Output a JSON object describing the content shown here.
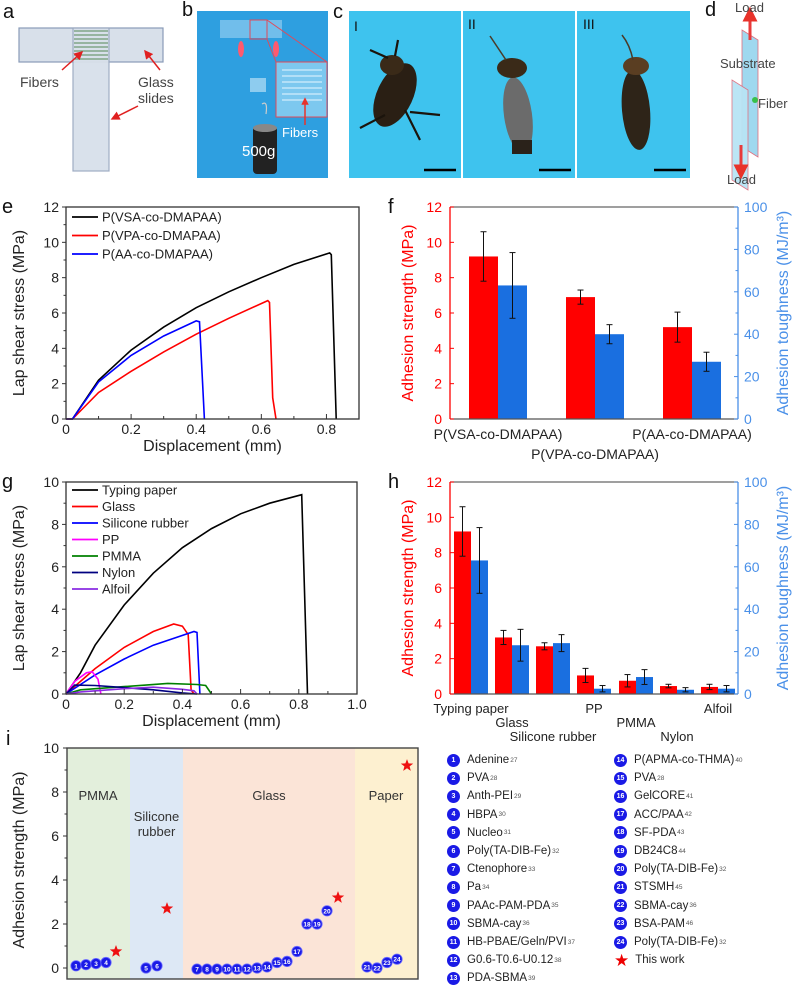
{
  "panel_letters": {
    "a": "a",
    "b": "b",
    "c": "c",
    "d": "d",
    "e": "e",
    "f": "f",
    "g": "g",
    "h": "h",
    "i": "i"
  },
  "panel_a": {
    "fibers": "Fibers",
    "glass_slides": "Glass slides"
  },
  "panel_b": {
    "weight": "500g",
    "fibers": "Fibers"
  },
  "panel_c": {
    "labels": [
      "I",
      "II",
      "III"
    ]
  },
  "panel_d": {
    "load_top": "Load",
    "substrate": "Substrate",
    "fiber": "Fiber",
    "load_bottom": "Load"
  },
  "colors": {
    "strength": "#ff0000",
    "toughness": "#1a6fe0",
    "toughness_axis": "#4a90e8",
    "photo_bg": "#2e9fe0",
    "insect_bg": "#3ec3ee",
    "marker": "#1a1ae6",
    "star": "#ee1111"
  },
  "chart_data": [
    {
      "type": "line",
      "xlabel": "Displacement (mm)",
      "ylabel": "Lap shear stress (MPa)",
      "xlim": [
        0,
        0.9
      ],
      "ylim": [
        0,
        12
      ],
      "xticks": [
        "0",
        "0.2",
        "0.4",
        "0.6",
        "0.8"
      ],
      "yticks": [
        "0",
        "2",
        "4",
        "6",
        "8",
        "10",
        "12"
      ],
      "legend": "top-left",
      "grid": false,
      "series": [
        {
          "name": "P(VSA-co-DMAPAA)",
          "color": "#000000",
          "points": [
            [
              0,
              0
            ],
            [
              0.02,
              0
            ],
            [
              0.1,
              2.2
            ],
            [
              0.2,
              3.9
            ],
            [
              0.3,
              5.2
            ],
            [
              0.4,
              6.3
            ],
            [
              0.5,
              7.2
            ],
            [
              0.6,
              8.0
            ],
            [
              0.7,
              8.75
            ],
            [
              0.81,
              9.4
            ],
            [
              0.815,
              9.3
            ],
            [
              0.83,
              0
            ]
          ]
        },
        {
          "name": "P(VPA-co-DMAPAA)",
          "color": "#ff0000",
          "points": [
            [
              0,
              0
            ],
            [
              0.02,
              0
            ],
            [
              0.1,
              1.5
            ],
            [
              0.2,
              2.7
            ],
            [
              0.3,
              3.8
            ],
            [
              0.4,
              4.8
            ],
            [
              0.5,
              5.7
            ],
            [
              0.62,
              6.7
            ],
            [
              0.625,
              6.6
            ],
            [
              0.635,
              1.2
            ],
            [
              0.645,
              0
            ]
          ]
        },
        {
          "name": "P(AA-co-DMAPAA)",
          "color": "#0000ff",
          "points": [
            [
              0,
              0
            ],
            [
              0.02,
              0
            ],
            [
              0.1,
              2.1
            ],
            [
              0.2,
              3.6
            ],
            [
              0.3,
              4.7
            ],
            [
              0.4,
              5.55
            ],
            [
              0.41,
              5.5
            ],
            [
              0.425,
              0
            ]
          ]
        }
      ]
    },
    {
      "type": "bar",
      "categories": [
        "P(VSA-co-DMAPAA)",
        "P(VPA-co-DMAPAA)",
        "P(AA-co-DMAPAA)"
      ],
      "ylabel": "Adhesion strength (MPa)",
      "y2label": "Adhesion toughness (MJ/m³)",
      "ylim": [
        0,
        12
      ],
      "y2lim": [
        0,
        100
      ],
      "yticks": [
        "0",
        "2",
        "4",
        "6",
        "8",
        "10",
        "12"
      ],
      "y2ticks": [
        "0",
        "20",
        "40",
        "60",
        "80",
        "100"
      ],
      "series": [
        {
          "axis": "left",
          "color": "#ff0000",
          "values": [
            9.2,
            6.9,
            5.2
          ],
          "errors": [
            1.4,
            0.4,
            0.85
          ]
        },
        {
          "axis": "right",
          "color": "#1a6fe0",
          "values": [
            63,
            40,
            27
          ],
          "errors": [
            15.5,
            4.5,
            4.5
          ]
        }
      ]
    },
    {
      "type": "line",
      "xlabel": "Displacement (mm)",
      "ylabel": "Lap shear stress (MPa)",
      "xlim": [
        0,
        1.0
      ],
      "ylim": [
        0,
        10
      ],
      "xticks": [
        "0",
        "0.2",
        "0.4",
        "0.6",
        "0.8",
        "1.0"
      ],
      "yticks": [
        "0",
        "2",
        "4",
        "6",
        "8",
        "10"
      ],
      "legend": "top-left",
      "grid": false,
      "series": [
        {
          "name": "Typing paper",
          "color": "#000000",
          "points": [
            [
              0,
              0
            ],
            [
              0.05,
              1
            ],
            [
              0.1,
              2.3
            ],
            [
              0.2,
              4.2
            ],
            [
              0.3,
              5.7
            ],
            [
              0.4,
              6.9
            ],
            [
              0.5,
              7.8
            ],
            [
              0.6,
              8.5
            ],
            [
              0.7,
              9.0
            ],
            [
              0.81,
              9.4
            ],
            [
              0.83,
              0
            ]
          ]
        },
        {
          "name": "Glass",
          "color": "#ff0000",
          "points": [
            [
              0,
              0
            ],
            [
              0.1,
              1.2
            ],
            [
              0.2,
              2.2
            ],
            [
              0.3,
              2.95
            ],
            [
              0.37,
              3.3
            ],
            [
              0.4,
              3.2
            ],
            [
              0.42,
              2.8
            ],
            [
              0.43,
              0.2
            ],
            [
              0.44,
              0
            ]
          ]
        },
        {
          "name": "Silicone rubber",
          "color": "#0000ff",
          "points": [
            [
              0,
              0
            ],
            [
              0.1,
              0.9
            ],
            [
              0.2,
              1.65
            ],
            [
              0.3,
              2.3
            ],
            [
              0.44,
              2.95
            ],
            [
              0.45,
              2.9
            ],
            [
              0.46,
              0
            ]
          ]
        },
        {
          "name": "PP",
          "color": "#ff00ff",
          "points": [
            [
              0,
              0
            ],
            [
              0.03,
              0.6
            ],
            [
              0.07,
              1.0
            ],
            [
              0.09,
              1.05
            ],
            [
              0.11,
              0.7
            ],
            [
              0.12,
              0
            ]
          ]
        },
        {
          "name": "PMMA",
          "color": "#008000",
          "points": [
            [
              0,
              0
            ],
            [
              0.05,
              0.2
            ],
            [
              0.2,
              0.35
            ],
            [
              0.35,
              0.5
            ],
            [
              0.45,
              0.45
            ],
            [
              0.48,
              0.4
            ],
            [
              0.5,
              0
            ]
          ]
        },
        {
          "name": "Nylon",
          "color": "#000080",
          "points": [
            [
              0,
              0
            ],
            [
              0.03,
              0.42
            ],
            [
              0.1,
              0.4
            ],
            [
              0.2,
              0.3
            ],
            [
              0.3,
              0.2
            ],
            [
              0.4,
              0.05
            ],
            [
              0.45,
              0
            ]
          ]
        },
        {
          "name": "Alfoil",
          "color": "#8a2be2",
          "points": [
            [
              0,
              0
            ],
            [
              0.05,
              0.1
            ],
            [
              0.2,
              0.25
            ],
            [
              0.3,
              0.32
            ],
            [
              0.4,
              0.22
            ],
            [
              0.44,
              0.15
            ],
            [
              0.45,
              0
            ]
          ]
        }
      ]
    },
    {
      "type": "bar",
      "categories": [
        "Typing paper",
        "Glass",
        "Silicone rubber",
        "PP",
        "PMMA",
        "Nylon",
        "Alfoil"
      ],
      "ylabel": "Adhesion strength (MPa)",
      "y2label": "Adhesion toughness (MJ/m³)",
      "ylim": [
        0,
        12
      ],
      "y2lim": [
        0,
        100
      ],
      "yticks": [
        "0",
        "2",
        "4",
        "6",
        "8",
        "10",
        "12"
      ],
      "y2ticks": [
        "0",
        "20",
        "40",
        "60",
        "80",
        "100"
      ],
      "series": [
        {
          "axis": "left",
          "color": "#ff0000",
          "values": [
            9.2,
            3.2,
            2.7,
            1.05,
            0.75,
            0.45,
            0.4
          ],
          "errors": [
            1.4,
            0.4,
            0.2,
            0.4,
            0.35,
            0.1,
            0.15
          ]
        },
        {
          "axis": "right",
          "color": "#1a6fe0",
          "values": [
            63,
            23,
            24,
            2.5,
            8,
            2,
            2.5
          ],
          "errors": [
            15.5,
            7.5,
            4,
            1.5,
            3.5,
            1,
            1.5
          ]
        }
      ]
    },
    {
      "type": "scatter",
      "ylabel": "Adhesion strength (MPa)",
      "ylim": [
        -0.5,
        10
      ],
      "yticks": [
        "0",
        "2",
        "4",
        "6",
        "8",
        "10"
      ],
      "regions": [
        {
          "label": "PMMA",
          "color": "#e3efdc"
        },
        {
          "label": "Silicone rubber",
          "color": "#dde8f5"
        },
        {
          "label": "Glass",
          "color": "#fbe4d7"
        },
        {
          "label": "Paper",
          "color": "#fdf0d0"
        }
      ],
      "points": [
        {
          "n": 1,
          "region": 0,
          "value": 0.1
        },
        {
          "n": 2,
          "region": 0,
          "value": 0.15
        },
        {
          "n": 3,
          "region": 0,
          "value": 0.2
        },
        {
          "n": 4,
          "region": 0,
          "value": 0.25
        },
        {
          "n": 5,
          "region": 1,
          "value": 0.0
        },
        {
          "n": 6,
          "region": 1,
          "value": 0.1
        },
        {
          "n": 7,
          "region": 2,
          "value": -0.05
        },
        {
          "n": 8,
          "region": 2,
          "value": -0.05
        },
        {
          "n": 9,
          "region": 2,
          "value": -0.05
        },
        {
          "n": 10,
          "region": 2,
          "value": -0.05
        },
        {
          "n": 11,
          "region": 2,
          "value": -0.05
        },
        {
          "n": 12,
          "region": 2,
          "value": -0.05
        },
        {
          "n": 13,
          "region": 2,
          "value": 0.0
        },
        {
          "n": 14,
          "region": 2,
          "value": 0.05
        },
        {
          "n": 15,
          "region": 2,
          "value": 0.25
        },
        {
          "n": 16,
          "region": 2,
          "value": 0.3
        },
        {
          "n": 17,
          "region": 2,
          "value": 0.75
        },
        {
          "n": 18,
          "region": 2,
          "value": 2.0
        },
        {
          "n": 19,
          "region": 2,
          "value": 2.0
        },
        {
          "n": 20,
          "region": 2,
          "value": 2.6
        },
        {
          "n": 21,
          "region": 3,
          "value": 0.05
        },
        {
          "n": 22,
          "region": 3,
          "value": 0.0
        },
        {
          "n": 23,
          "region": 3,
          "value": 0.25
        },
        {
          "n": 24,
          "region": 3,
          "value": 0.4
        }
      ],
      "this_work": [
        {
          "region": 0,
          "value": 0.75
        },
        {
          "region": 1,
          "value": 2.7
        },
        {
          "region": 2,
          "value": 3.2
        },
        {
          "region": 3,
          "value": 9.2
        }
      ],
      "legend": [
        {
          "n": "1",
          "name": "Adenine",
          "ref": "27"
        },
        {
          "n": "2",
          "name": "PVA",
          "ref": "28"
        },
        {
          "n": "3",
          "name": "Anth-PEI",
          "ref": "29"
        },
        {
          "n": "4",
          "name": "HBPA",
          "ref": "30"
        },
        {
          "n": "5",
          "name": "Nucleo",
          "ref": "31"
        },
        {
          "n": "6",
          "name": "Poly(TA-DIB-Fe)",
          "ref": "32"
        },
        {
          "n": "7",
          "name": "Ctenophore",
          "ref": "33"
        },
        {
          "n": "8",
          "name": "Pa",
          "ref": "34"
        },
        {
          "n": "9",
          "name": "PAAc-PAM-PDA",
          "ref": "35"
        },
        {
          "n": "10",
          "name": "SBMA-cay",
          "ref": "36"
        },
        {
          "n": "11",
          "name": "HB-PBAE/Geln/PVI",
          "ref": "37"
        },
        {
          "n": "12",
          "name": "G0.6-T0.6-U0.12",
          "ref": "38"
        },
        {
          "n": "13",
          "name": "PDA-SBMA",
          "ref": "39"
        },
        {
          "n": "14",
          "name": "P(APMA-co-THMA)",
          "ref": "40"
        },
        {
          "n": "15",
          "name": "PVA",
          "ref": "28"
        },
        {
          "n": "16",
          "name": "GelCORE",
          "ref": "41"
        },
        {
          "n": "17",
          "name": "ACC/PAA",
          "ref": "42"
        },
        {
          "n": "18",
          "name": "SF-PDA",
          "ref": "43"
        },
        {
          "n": "19",
          "name": "DB24C8",
          "ref": "44"
        },
        {
          "n": "20",
          "name": "Poly(TA-DIB-Fe)",
          "ref": "32"
        },
        {
          "n": "21",
          "name": "STSMH",
          "ref": "45"
        },
        {
          "n": "22",
          "name": "SBMA-cay",
          "ref": "36"
        },
        {
          "n": "23",
          "name": "BSA-PAM",
          "ref": "46"
        },
        {
          "n": "24",
          "name": "Poly(TA-DIB-Fe)",
          "ref": "32"
        }
      ],
      "this_work_label": "This work"
    }
  ]
}
